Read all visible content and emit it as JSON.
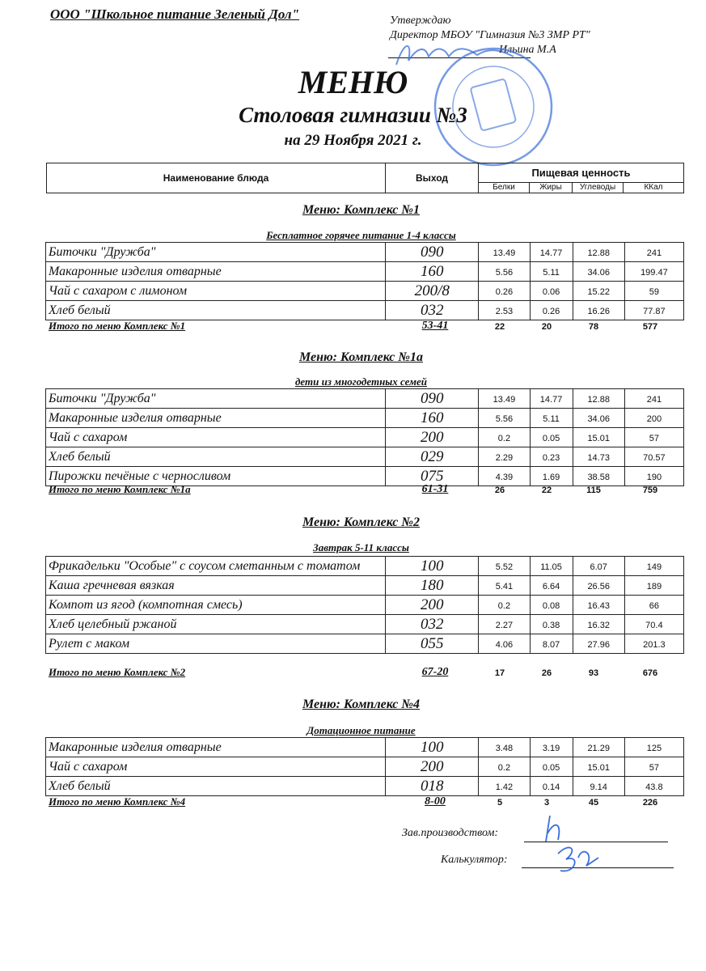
{
  "header": {
    "organization": "ООО \"Школьное питание Зеленый Дол\"",
    "approve_label": "Утверждаю",
    "approver_position": "Директор МБОУ \"Гимназия №3 ЗМР РТ\"",
    "approver_name": "Ильина М.А",
    "title": "МЕНЮ",
    "subtitle": "Столовая гимназии №3",
    "date": "на 29 Ноября 2021 г."
  },
  "columns": {
    "name": "Наименование блюда",
    "output": "Выход",
    "nutrition": "Пищевая ценность",
    "protein": "Белки",
    "fat": "Жиры",
    "carbs": "Углеводы",
    "kcal": "ККал"
  },
  "sections": [
    {
      "title": "Меню: Комплекс №1",
      "subtitle": "Бесплатное горячее питание  1-4 классы",
      "rows": [
        [
          "Биточки  \"Дружба\"",
          "090",
          "13.49",
          "14.77",
          "12.88",
          "241"
        ],
        [
          "Макаронные изделия отварные",
          "160",
          "5.56",
          "5.11",
          "34.06",
          "199.47"
        ],
        [
          "Чай с сахаром с лимоном",
          "200/8",
          "0.26",
          "0.06",
          "15.22",
          "59"
        ],
        [
          "Хлеб белый",
          "032",
          "2.53",
          "0.26",
          "16.26",
          "77.87"
        ]
      ],
      "total": [
        "Итого по меню Комплекс №1",
        "53-41",
        "22",
        "20",
        "78",
        "577"
      ]
    },
    {
      "title": "Меню: Комплекс №1а",
      "subtitle": "дети из многодетных семей",
      "rows": [
        [
          "Биточки  \"Дружба\"",
          "090",
          "13.49",
          "14.77",
          "12.88",
          "241"
        ],
        [
          "Макаронные изделия отварные",
          "160",
          "5.56",
          "5.11",
          "34.06",
          "200"
        ],
        [
          "Чай с сахаром",
          "200",
          "0.2",
          "0.05",
          "15.01",
          "57"
        ],
        [
          "Хлеб белый",
          "029",
          "2.29",
          "0.23",
          "14.73",
          "70.57"
        ],
        [
          "Пирожки печёные с черносливом",
          "075",
          "4.39",
          "1.69",
          "38.58",
          "190"
        ]
      ],
      "total": [
        "Итого по меню Комплекс №1а",
        "61-31",
        "26",
        "22",
        "115",
        "759"
      ]
    },
    {
      "title": "Меню: Комплекс №2",
      "subtitle": "Завтрак 5-11 классы",
      "rows": [
        [
          "Фрикадельки \"Особые\" с соусом сметанным с томатом",
          "100",
          "5.52",
          "11.05",
          "6.07",
          "149"
        ],
        [
          "Каша гречневая вязкая",
          "180",
          "5.41",
          "6.64",
          "26.56",
          "189"
        ],
        [
          "Компот из  ягод (компотная смесь)",
          "200",
          "0.2",
          "0.08",
          "16.43",
          "66"
        ],
        [
          "Хлеб  целебный ржаной",
          "032",
          "2.27",
          "0.38",
          "16.32",
          "70.4"
        ],
        [
          "Рулет с маком",
          "055",
          "4.06",
          "8.07",
          "27.96",
          "201.3"
        ]
      ],
      "total": [
        "Итого по меню Комплекс №2",
        "67-20",
        "17",
        "26",
        "93",
        "676"
      ]
    },
    {
      "title": "Меню: Комплекс №4",
      "subtitle": "Дотационное питание",
      "rows": [
        [
          "Макаронные изделия отварные",
          "100",
          "3.48",
          "3.19",
          "21.29",
          "125"
        ],
        [
          "Чай с сахаром",
          "200",
          "0.2",
          "0.05",
          "15.01",
          "57"
        ],
        [
          "Хлеб белый",
          "018",
          "1.42",
          "0.14",
          "9.14",
          "43.8"
        ]
      ],
      "total": [
        "Итого по меню Комплекс №4",
        "8-00",
        "5",
        "3",
        "45",
        "226"
      ]
    }
  ],
  "signatures": {
    "production_head": "Зав.производством:",
    "calculator": "Калькулятор:"
  },
  "colors": {
    "stamp": "#3a6fd8",
    "ink": "#111111"
  }
}
